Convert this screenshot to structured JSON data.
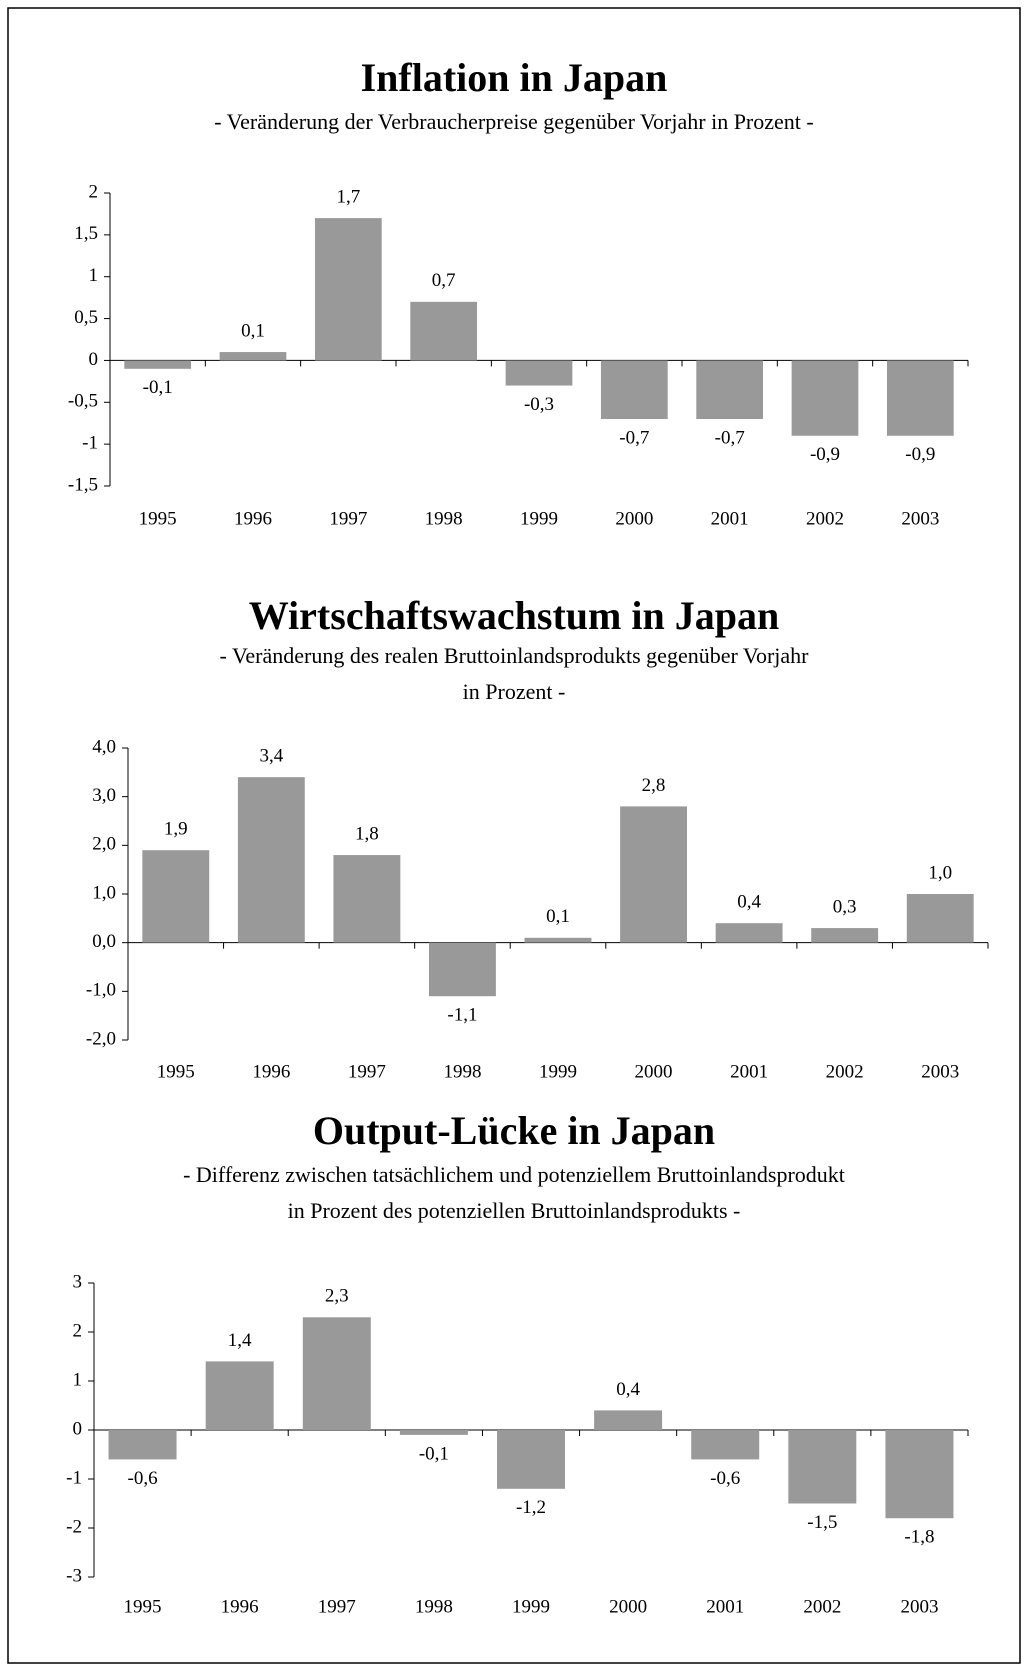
{
  "chart_data": [
    {
      "type": "bar",
      "title": "Inflation in Japan",
      "subtitle": [
        "- Veränderung der Verbraucherpreise gegenüber Vorjahr in Prozent -"
      ],
      "categories": [
        "1995",
        "1996",
        "1997",
        "1998",
        "1999",
        "2000",
        "2001",
        "2002",
        "2003"
      ],
      "values": [
        -0.1,
        0.1,
        1.7,
        0.7,
        -0.3,
        -0.7,
        -0.7,
        -0.9,
        -0.9
      ],
      "value_labels": [
        "-0,1",
        "0,1",
        "1,7",
        "0,7",
        "-0,3",
        "-0,7",
        "-0,7",
        "-0,9",
        "-0,9"
      ],
      "color": "#999999",
      "ylim": [
        -1.5,
        2
      ],
      "yticks": [
        2,
        {
          "value": 1.5,
          "label": "1,5"
        },
        1,
        {
          "value": 0.5,
          "label": "0,5"
        },
        0,
        {
          "value": -0.5,
          "label": "-0,5"
        },
        -1,
        {
          "value": -1.5,
          "label": "-1,5"
        }
      ]
    },
    {
      "type": "bar",
      "title": "Wirtschaftswachstum in Japan",
      "subtitle": [
        "- Veränderung des realen Bruttoinlandsprodukts gegenüber Vorjahr",
        "in Prozent -"
      ],
      "categories": [
        "1995",
        "1996",
        "1997",
        "1998",
        "1999",
        "2000",
        "2001",
        "2002",
        "2003"
      ],
      "values": [
        1.9,
        3.4,
        1.8,
        -1.1,
        0.1,
        2.8,
        0.4,
        0.3,
        1.0
      ],
      "value_labels": [
        "1,9",
        "3,4",
        "1,8",
        "-1,1",
        "0,1",
        "2,8",
        "0,4",
        "0,3",
        "1,0"
      ],
      "color": "#999999",
      "ylim": [
        -2,
        4
      ],
      "yticks": [
        {
          "value": 4,
          "label": "4,0"
        },
        {
          "value": 3,
          "label": "3,0"
        },
        {
          "value": 2,
          "label": "2,0"
        },
        {
          "value": 1,
          "label": "1,0"
        },
        {
          "value": 0,
          "label": "0,0"
        },
        {
          "value": -1,
          "label": "-1,0"
        },
        {
          "value": -2,
          "label": "-2,0"
        }
      ]
    },
    {
      "type": "bar",
      "title": "Output-Lücke in Japan",
      "subtitle": [
        "- Differenz zwischen tatsächlichem und potenziellem Bruttoinlandsprodukt",
        "in Prozent des potenziellen Bruttoinlandsprodukts -"
      ],
      "categories": [
        "1995",
        "1996",
        "1997",
        "1998",
        "1999",
        "2000",
        "2001",
        "2002",
        "2003"
      ],
      "values": [
        -0.6,
        1.4,
        2.3,
        -0.1,
        -1.2,
        0.4,
        -0.6,
        -1.5,
        -1.8
      ],
      "value_labels": [
        "-0,6",
        "1,4",
        "2,3",
        "-0,1",
        "-1,2",
        "0,4",
        "-0,6",
        "-1,5",
        "-1,8"
      ],
      "color": "#999999",
      "ylim": [
        -3,
        3
      ],
      "yticks": [
        3,
        2,
        1,
        0,
        -1,
        -2,
        -3
      ]
    }
  ]
}
